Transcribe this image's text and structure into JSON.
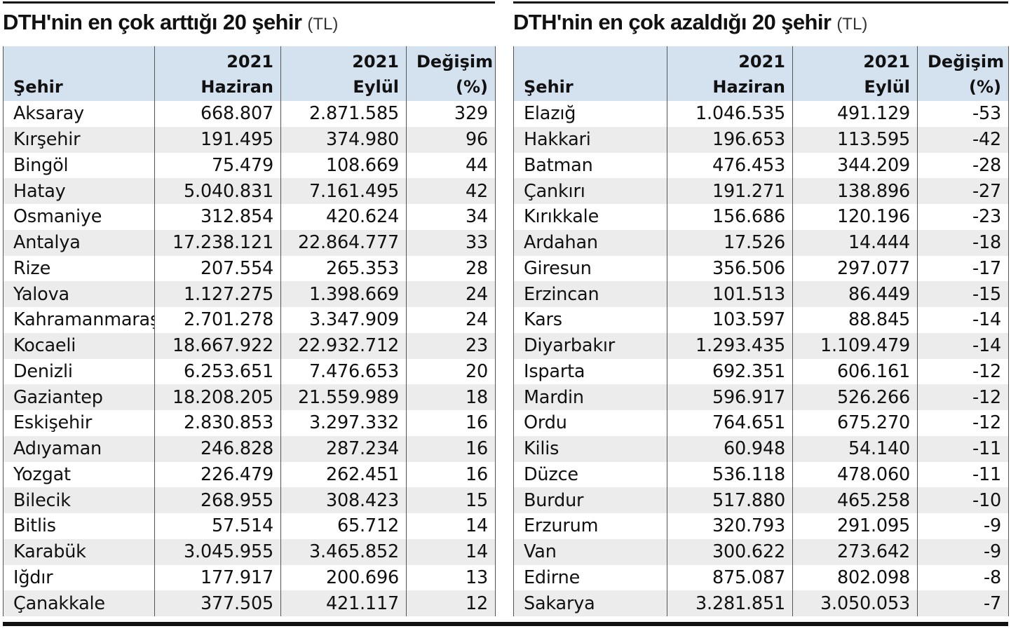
{
  "left": {
    "title": "DTH'nin en çok arttığı 20 şehir",
    "unit": "(TL)",
    "headers": {
      "city": "Şehir",
      "june_year": "2021",
      "june_month": "Haziran",
      "sept_year": "2021",
      "sept_month": "Eylül",
      "change_label": "Değişim",
      "change_unit": "(%)"
    },
    "rows": [
      {
        "city": "Aksaray",
        "june": "668.807",
        "sept": "2.871.585",
        "change": "329"
      },
      {
        "city": "Kırşehir",
        "june": "191.495",
        "sept": "374.980",
        "change": "96"
      },
      {
        "city": "Bingöl",
        "june": "75.479",
        "sept": "108.669",
        "change": "44"
      },
      {
        "city": "Hatay",
        "june": "5.040.831",
        "sept": "7.161.495",
        "change": "42"
      },
      {
        "city": "Osmaniye",
        "june": "312.854",
        "sept": "420.624",
        "change": "34"
      },
      {
        "city": "Antalya",
        "june": "17.238.121",
        "sept": "22.864.777",
        "change": "33"
      },
      {
        "city": "Rize",
        "june": "207.554",
        "sept": "265.353",
        "change": "28"
      },
      {
        "city": "Yalova",
        "june": "1.127.275",
        "sept": "1.398.669",
        "change": "24"
      },
      {
        "city": "Kahramanmaraş",
        "june": "2.701.278",
        "sept": "3.347.909",
        "change": "24"
      },
      {
        "city": "Kocaeli",
        "june": "18.667.922",
        "sept": "22.932.712",
        "change": "23"
      },
      {
        "city": "Denizli",
        "june": "6.253.651",
        "sept": "7.476.653",
        "change": "20"
      },
      {
        "city": "Gaziantep",
        "june": "18.208.205",
        "sept": "21.559.989",
        "change": "18"
      },
      {
        "city": "Eskişehir",
        "june": "2.830.853",
        "sept": "3.297.332",
        "change": "16"
      },
      {
        "city": "Adıyaman",
        "june": "246.828",
        "sept": "287.234",
        "change": "16"
      },
      {
        "city": "Yozgat",
        "june": "226.479",
        "sept": "262.451",
        "change": "16"
      },
      {
        "city": "Bilecik",
        "june": "268.955",
        "sept": "308.423",
        "change": "15"
      },
      {
        "city": "Bitlis",
        "june": "57.514",
        "sept": "65.712",
        "change": "14"
      },
      {
        "city": "Karabük",
        "june": "3.045.955",
        "sept": "3.465.852",
        "change": "14"
      },
      {
        "city": "Iğdır",
        "june": "177.917",
        "sept": "200.696",
        "change": "13"
      },
      {
        "city": "Çanakkale",
        "june": "377.505",
        "sept": "421.117",
        "change": "12"
      }
    ]
  },
  "right": {
    "title": "DTH'nin en çok azaldığı 20 şehir",
    "unit": "(TL)",
    "headers": {
      "city": "Şehir",
      "june_year": "2021",
      "june_month": "Haziran",
      "sept_year": "2021",
      "sept_month": "Eylül",
      "change_label": "Değişim",
      "change_unit": "(%)"
    },
    "rows": [
      {
        "city": "Elazığ",
        "june": "1.046.535",
        "sept": "491.129",
        "change": "-53"
      },
      {
        "city": "Hakkari",
        "june": "196.653",
        "sept": "113.595",
        "change": "-42"
      },
      {
        "city": "Batman",
        "june": "476.453",
        "sept": "344.209",
        "change": "-28"
      },
      {
        "city": "Çankırı",
        "june": "191.271",
        "sept": "138.896",
        "change": "-27"
      },
      {
        "city": "Kırıkkale",
        "june": "156.686",
        "sept": "120.196",
        "change": "-23"
      },
      {
        "city": "Ardahan",
        "june": "17.526",
        "sept": "14.444",
        "change": "-18"
      },
      {
        "city": "Giresun",
        "june": "356.506",
        "sept": "297.077",
        "change": "-17"
      },
      {
        "city": "Erzincan",
        "june": "101.513",
        "sept": "86.449",
        "change": "-15"
      },
      {
        "city": "Kars",
        "june": "103.597",
        "sept": "88.845",
        "change": "-14"
      },
      {
        "city": "Diyarbakır",
        "june": "1.293.435",
        "sept": "1.109.479",
        "change": "-14"
      },
      {
        "city": "Isparta",
        "june": "692.351",
        "sept": "606.161",
        "change": "-12"
      },
      {
        "city": "Mardin",
        "june": "596.917",
        "sept": "526.266",
        "change": "-12"
      },
      {
        "city": "Ordu",
        "june": "764.651",
        "sept": "675.270",
        "change": "-12"
      },
      {
        "city": "Kilis",
        "june": "60.948",
        "sept": "54.140",
        "change": "-11"
      },
      {
        "city": "Düzce",
        "june": "536.118",
        "sept": "478.060",
        "change": "-11"
      },
      {
        "city": "Burdur",
        "june": "517.880",
        "sept": "465.258",
        "change": "-10"
      },
      {
        "city": "Erzurum",
        "june": "320.793",
        "sept": "291.095",
        "change": "-9"
      },
      {
        "city": "Van",
        "june": "300.622",
        "sept": "273.642",
        "change": "-9"
      },
      {
        "city": "Edirne",
        "june": "875.087",
        "sept": "802.098",
        "change": "-8"
      },
      {
        "city": "Sakarya",
        "june": "3.281.851",
        "sept": "3.050.053",
        "change": "-7"
      }
    ]
  },
  "colors": {
    "header_bg": "#d4e1ee",
    "stripe_bg": "#ececec",
    "rule": "#111111"
  }
}
